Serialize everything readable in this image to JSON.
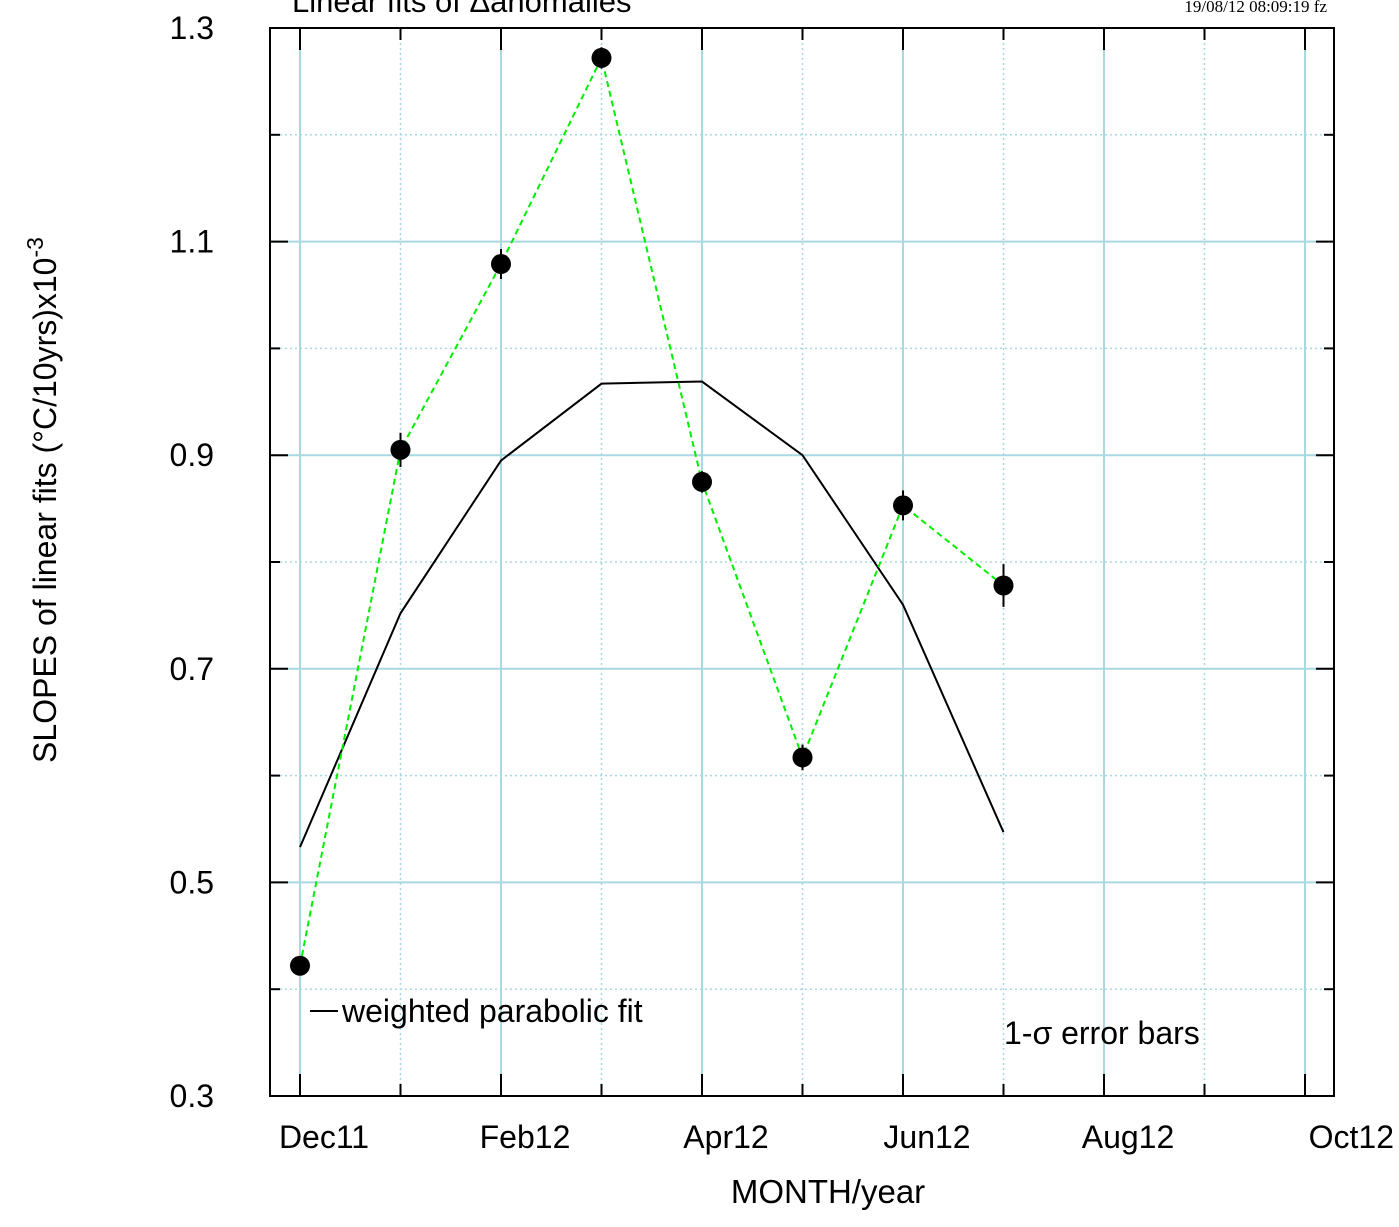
{
  "chart_data": {
    "type": "line",
    "title": "Linear fits of Δanomalies",
    "timestamp": "19/08/12  08:09:19 fz",
    "xlabel": "MONTH/year",
    "ylabel": "SLOPES of linear fits (°C/10yrs)x10",
    "ylabel_exponent": "-3",
    "x_ticks": [
      "Dec11",
      "",
      "Feb12",
      "",
      "Apr12",
      "",
      "Jun12",
      "",
      "Aug12",
      "",
      "Oct12"
    ],
    "y_ticks": [
      "0.3",
      "",
      "0.5",
      "",
      "0.7",
      "",
      "0.9",
      "",
      "1.1",
      "",
      "1.3"
    ],
    "ylim": [
      0.3,
      1.3
    ],
    "grid": true,
    "series": [
      {
        "name": "",
        "style": "points-dashed",
        "x": [
          "Dec11",
          "Jan12",
          "Feb12",
          "Mar12",
          "Apr12",
          "May12",
          "Jun12",
          "Jul12"
        ],
        "values": [
          0.422,
          0.905,
          1.079,
          1.272,
          0.875,
          0.617,
          0.853,
          0.778
        ],
        "errors": [
          0.008,
          0.016,
          0.014,
          0.01,
          0.01,
          0.012,
          0.014,
          0.02
        ]
      },
      {
        "name": "weighted parabolic fit",
        "style": "solid",
        "x": [
          "Dec11",
          "Jan12",
          "Feb12",
          "Mar12",
          "Apr12",
          "May12",
          "Jun12",
          "Jul12"
        ],
        "values": [
          0.533,
          0.752,
          0.895,
          0.967,
          0.969,
          0.9,
          0.76,
          0.547
        ]
      }
    ],
    "annotations": [
      "1-σ error bars"
    ],
    "colors": {
      "points": "#000000",
      "dashed_line": "#00ee00",
      "fit_line": "#000000",
      "grid": "#a8d8e0"
    }
  }
}
